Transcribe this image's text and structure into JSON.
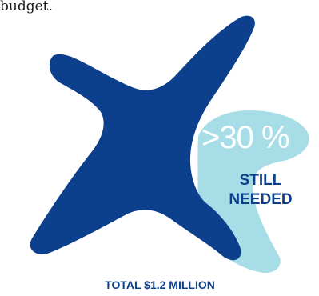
{
  "intro": {
    "text_fragment": "budget."
  },
  "graphic": {
    "percent_label": ">30 %",
    "still_needed_line1": "STILL",
    "still_needed_line2": "NEEDED",
    "total_label": "TOTAL $1.2 MILLION",
    "raised_share_percent": 70,
    "still_needed_share_percent": 30,
    "colors": {
      "raised": "#0c3f8c",
      "still_needed": "#a6dde7",
      "percent_text": "#ffffff",
      "label_text": "#0c3f8c"
    }
  }
}
